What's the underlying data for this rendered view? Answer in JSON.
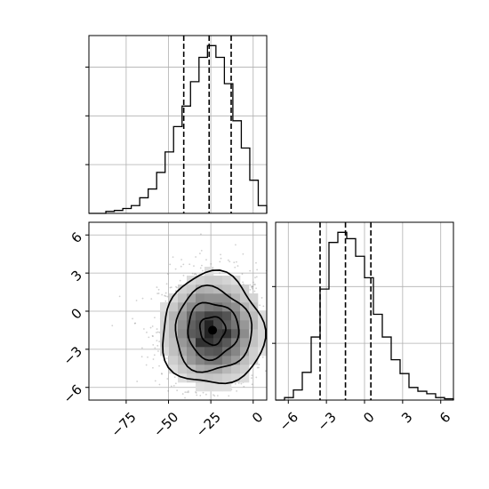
{
  "chart_data": {
    "type": "corner",
    "title": "",
    "parameters": [
      {
        "id": "p0",
        "label": "",
        "tick_labels": [
          "−75",
          "−50",
          "−25",
          "0"
        ],
        "tick_values": [
          -75,
          -50,
          -25,
          0
        ],
        "range": [
          -97,
          8
        ],
        "quantiles": [
          -41,
          -26,
          -13
        ]
      },
      {
        "id": "p1",
        "label": "",
        "tick_labels": [
          "−6",
          "−3",
          "0",
          "3",
          "6"
        ],
        "tick_values": [
          -6,
          -3,
          0,
          3,
          6
        ],
        "range": [
          -7,
          7
        ],
        "quantiles": [
          -3.5,
          -1.5,
          0.5
        ]
      }
    ],
    "histogram_p0": {
      "bin_edges": [
        -97,
        -92,
        -87,
        -82,
        -77,
        -72,
        -67,
        -62,
        -57,
        -52,
        -47,
        -42,
        -37,
        -32,
        -27,
        -22,
        -17,
        -12,
        -7,
        -2,
        3,
        8
      ],
      "counts": [
        0,
        0,
        2,
        3,
        5,
        8,
        16,
        25,
        42,
        63,
        89,
        110,
        135,
        160,
        172,
        160,
        133,
        95,
        67,
        34,
        8
      ]
    },
    "histogram_p1": {
      "bin_edges": [
        -7,
        -6.3,
        -5.6,
        -4.9,
        -4.2,
        -3.5,
        -2.8,
        -2.1,
        -1.4,
        -0.7,
        0,
        0.7,
        1.4,
        2.1,
        2.8,
        3.5,
        4.2,
        4.9,
        5.6,
        6.3,
        7
      ],
      "counts": [
        0,
        2,
        8,
        22,
        50,
        88,
        125,
        133,
        128,
        114,
        97,
        68,
        50,
        32,
        21,
        10,
        7,
        5,
        2,
        1
      ]
    },
    "joint_2d": {
      "center": [
        -24,
        -1.5
      ],
      "spread": [
        15,
        2.2
      ],
      "contour_levels": [
        "0.5σ",
        "1σ",
        "1.5σ",
        "2σ"
      ],
      "grid_colors": {
        "density": "#000000",
        "points": "#555555",
        "grid": "#b0b0b0"
      }
    },
    "grid": true
  }
}
